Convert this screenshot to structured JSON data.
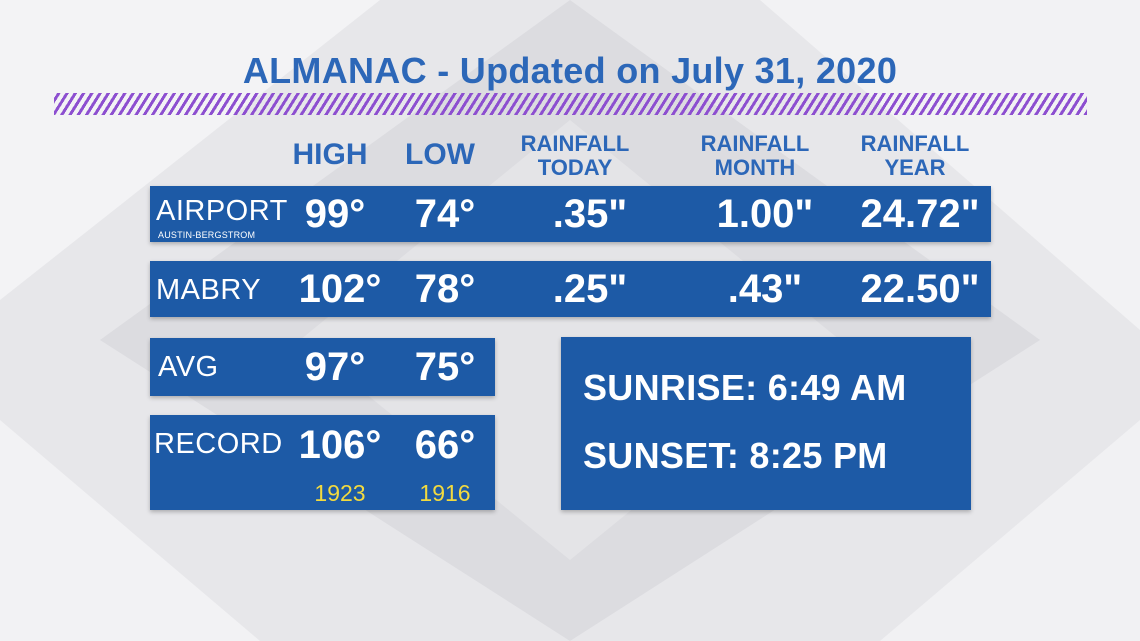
{
  "title": "ALMANAC - Updated on July 31, 2020",
  "headers": {
    "high": "HIGH",
    "low": "LOW",
    "rain_today": [
      "RAINFALL",
      "TODAY"
    ],
    "rain_month": [
      "RAINFALL",
      "MONTH"
    ],
    "rain_year": [
      "RAINFALL",
      "YEAR"
    ]
  },
  "airport": {
    "label": "AIRPORT",
    "sublabel": "AUSTIN-BERGSTROM",
    "high": "99°",
    "low": "74°",
    "rain_today": ".35\"",
    "rain_month": "1.00\"",
    "rain_year": "24.72\""
  },
  "mabry": {
    "label": "MABRY",
    "high": "102°",
    "low": "78°",
    "rain_today": ".25\"",
    "rain_month": ".43\"",
    "rain_year": "22.50\""
  },
  "avg": {
    "label": "AVG",
    "high": "97°",
    "low": "75°"
  },
  "record": {
    "label": "RECORD",
    "high": "106°",
    "low": "66°",
    "high_year": "1923",
    "low_year": "1916"
  },
  "sun": {
    "sunrise": "SUNRISE: 6:49 AM",
    "sunset": "SUNSET: 8:25 PM"
  },
  "colors": {
    "bar": "#1d5aa6",
    "title": "#2c67b8",
    "year": "#f2da3f",
    "stripe": "#8d4fd0"
  }
}
